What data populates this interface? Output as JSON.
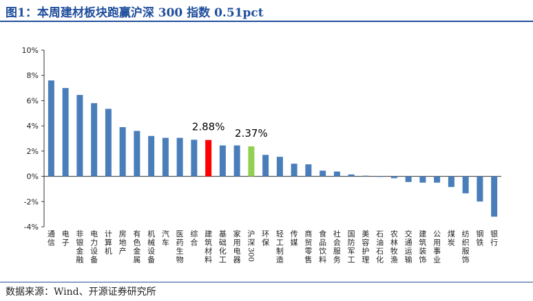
{
  "header": {
    "title": "图1：本周建材板块跑赢沪深 300 指数 0.51pct"
  },
  "footer": {
    "source": "数据来源：Wind、开源证券研究所"
  },
  "colors": {
    "default": "#4a7ebb",
    "highlight": "#ff0000",
    "benchmark": "#92d050",
    "title": "#1f4e9c"
  },
  "chart_data": {
    "type": "bar",
    "ylim": [
      -4,
      10
    ],
    "ytick_labels": [
      "10%",
      "8%",
      "6%",
      "4%",
      "2%",
      "0%",
      "-2%",
      "-4%"
    ],
    "categories": [
      "通信",
      "电子",
      "非银金融",
      "电力设备",
      "计算机",
      "房地产",
      "有色金属",
      "机械设备",
      "汽车",
      "医药生物",
      "综合",
      "建筑材料",
      "基础化工",
      "家用电器",
      "沪深300",
      "环保",
      "轻工制造",
      "传媒",
      "商贸零售",
      "食品饮料",
      "社会服务",
      "国防军工",
      "美容护理",
      "石油石化",
      "农林牧渔",
      "交通运输",
      "建筑装饰",
      "公用事业",
      "煤炭",
      "纺织服饰",
      "钢铁",
      "银行"
    ],
    "values": [
      7.6,
      7.0,
      6.45,
      5.8,
      5.35,
      3.9,
      3.6,
      3.2,
      3.05,
      3.05,
      2.9,
      2.88,
      2.45,
      2.45,
      2.37,
      1.7,
      1.55,
      1.0,
      0.95,
      0.45,
      0.38,
      0.15,
      0.05,
      -0.05,
      -0.15,
      -0.45,
      -0.5,
      -0.5,
      -0.85,
      -1.35,
      -2.0,
      -3.2
    ],
    "highlight_category": "建筑材料",
    "benchmark_category": "沪深300",
    "data_labels": [
      {
        "category": "建筑材料",
        "text": "2.88%"
      },
      {
        "category": "沪深300",
        "text": "2.37%"
      }
    ]
  }
}
